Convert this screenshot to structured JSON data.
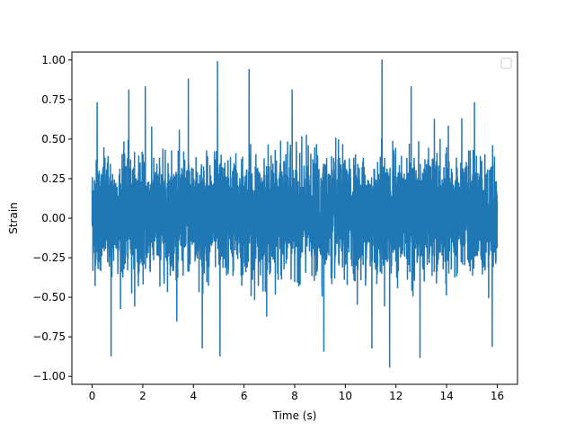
{
  "chart_data": {
    "type": "line",
    "title": "",
    "xlabel": "Time (s)",
    "ylabel": "Strain",
    "xlim": [
      -0.8,
      16.8
    ],
    "ylim": [
      -1.05,
      1.05
    ],
    "xticks": [
      0,
      2,
      4,
      6,
      8,
      10,
      12,
      14,
      16
    ],
    "xtick_labels": [
      "0",
      "2",
      "4",
      "6",
      "8",
      "10",
      "12",
      "14",
      "16"
    ],
    "yticks": [
      1.0,
      0.75,
      0.5,
      0.25,
      0.0,
      -0.25,
      -0.5,
      -0.75,
      -1.0
    ],
    "ytick_labels": [
      "1.00",
      "0.75",
      "0.50",
      "0.25",
      "0.00",
      "−0.25",
      "−0.50",
      "−0.75",
      "−1.00"
    ],
    "grid": false,
    "legend": {
      "location": "upper right",
      "entries": []
    },
    "series": [
      {
        "color": "#1f77b4",
        "x_range": [
          0,
          16
        ],
        "y_min": -0.94,
        "y_max": 1.0,
        "typical_band": [
          -0.5,
          0.55
        ],
        "peaks": [
          {
            "x": 0.2,
            "y": 0.73
          },
          {
            "x": 1.45,
            "y": 0.81
          },
          {
            "x": 2.1,
            "y": 0.83
          },
          {
            "x": 3.8,
            "y": 0.88
          },
          {
            "x": 4.95,
            "y": 0.99
          },
          {
            "x": 6.2,
            "y": 0.94
          },
          {
            "x": 7.9,
            "y": 0.81
          },
          {
            "x": 11.45,
            "y": 1.0
          },
          {
            "x": 12.6,
            "y": 0.83
          },
          {
            "x": 15.1,
            "y": 0.73
          }
        ],
        "troughs": [
          {
            "x": 0.75,
            "y": -0.87
          },
          {
            "x": 4.35,
            "y": -0.82
          },
          {
            "x": 5.05,
            "y": -0.87
          },
          {
            "x": 9.15,
            "y": -0.84
          },
          {
            "x": 11.05,
            "y": -0.82
          },
          {
            "x": 11.75,
            "y": -0.94
          },
          {
            "x": 12.95,
            "y": -0.88
          },
          {
            "x": 15.8,
            "y": -0.81
          }
        ]
      }
    ]
  }
}
